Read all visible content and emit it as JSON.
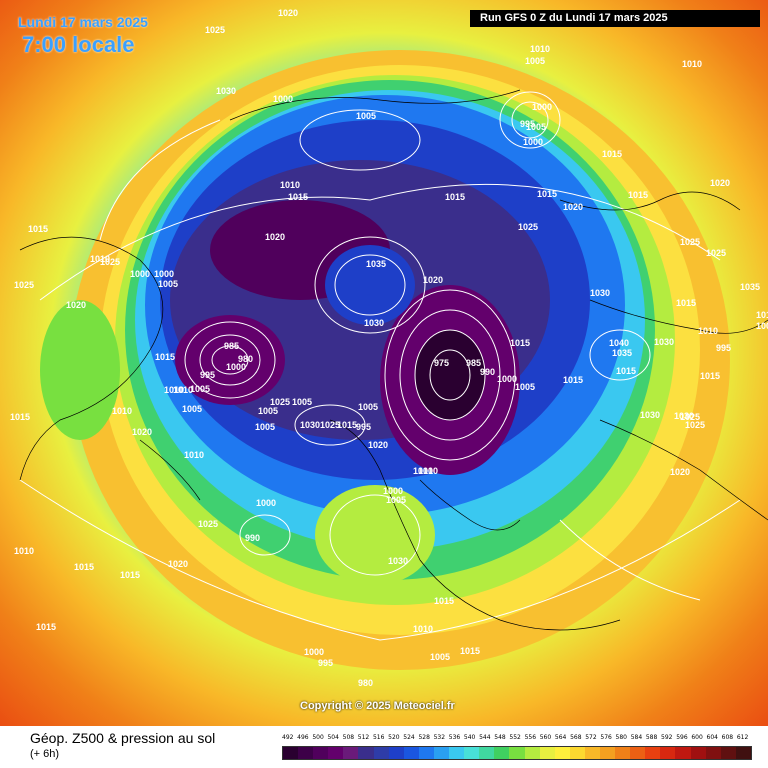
{
  "header": {
    "date": "Lundi 17 mars 2025",
    "time": "7:00 locale",
    "run": "Run GFS 0 Z du Lundi 17 mars 2025"
  },
  "copyright": "Copyright © 2025 Meteociel.fr",
  "footer": {
    "title": "Géop. Z500 & pression au sol",
    "subtitle": "(+ 6h)"
  },
  "legend": {
    "ticks": [
      "492",
      "496",
      "500",
      "504",
      "508",
      "512",
      "516",
      "520",
      "524",
      "528",
      "532",
      "536",
      "540",
      "544",
      "548",
      "552",
      "556",
      "560",
      "564",
      "568",
      "572",
      "576",
      "580",
      "584",
      "588",
      "592",
      "596",
      "600",
      "604",
      "608",
      "612"
    ],
    "colors": [
      "#2a0030",
      "#3d0048",
      "#50005c",
      "#63006c",
      "#6a1a7a",
      "#3a2e8c",
      "#2e3ca8",
      "#1e3fc8",
      "#1a56e0",
      "#1f78f0",
      "#2aa0f2",
      "#3ac8f0",
      "#48e0d8",
      "#40d8a0",
      "#40d060",
      "#78e040",
      "#b4ec40",
      "#e8f040",
      "#fff03c",
      "#fcd830",
      "#f8b828",
      "#f4a020",
      "#f08018",
      "#ec6014",
      "#e84010",
      "#d82810",
      "#c01810",
      "#a01010",
      "#801010",
      "#601010",
      "#401010"
    ]
  },
  "pressure_labels": [
    "1020",
    "1025",
    "1030",
    "1010",
    "1005",
    "1010",
    "1000",
    "1005",
    "1000",
    "995",
    "1005",
    "1000",
    "1015",
    "1015",
    "1015",
    "1020",
    "1015",
    "1015",
    "1020",
    "1025",
    "1025",
    "1025",
    "1020",
    "1000",
    "1000",
    "1005",
    "1010",
    "1025",
    "1020",
    "1015",
    "1025",
    "1035",
    "1030",
    "1020",
    "1030",
    "1040",
    "1035",
    "1030",
    "1005",
    "995",
    "1010",
    "1015",
    "975",
    "985",
    "990",
    "1000",
    "1015",
    "1005",
    "1015",
    "1035",
    "1015",
    "1015",
    "1010",
    "1030",
    "1030",
    "1025",
    "1030",
    "1020",
    "1025",
    "1010",
    "1015",
    "1005",
    "1005",
    "1005",
    "1010",
    "1000",
    "990",
    "980",
    "985",
    "995",
    "1005",
    "1010",
    "1000",
    "1015",
    "1010",
    "1010",
    "1020",
    "1025",
    "1005",
    "1030",
    "1015",
    "1025",
    "1020",
    "1010",
    "1005",
    "995",
    "1000",
    "1005",
    "1010",
    "1025",
    "1015",
    "1010",
    "1015",
    "1015",
    "1020",
    "1015",
    "1010",
    "1015",
    "1005",
    "1000",
    "995",
    "980"
  ]
}
